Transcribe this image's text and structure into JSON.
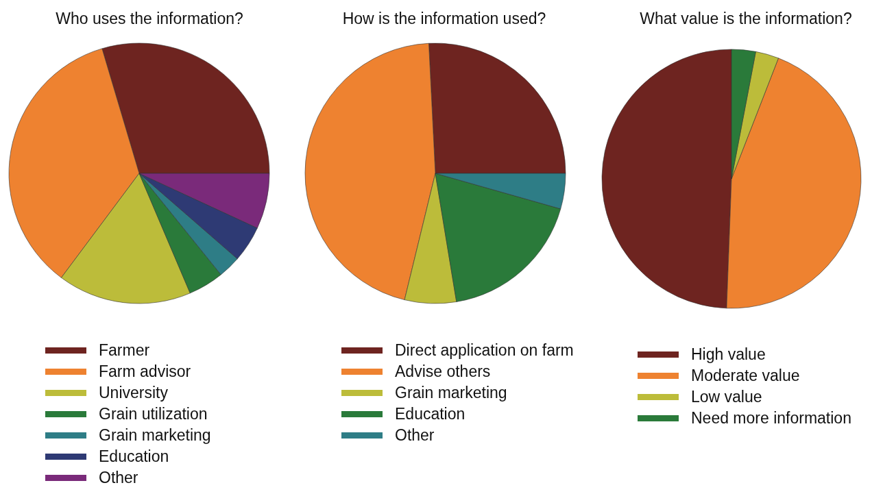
{
  "chart_data": [
    {
      "type": "pie",
      "title": "Who uses the information?",
      "categories": [
        "Farmer",
        "Farm advisor",
        "University",
        "Grain utilization",
        "Grain marketing",
        "Education",
        "Other"
      ],
      "values": [
        29.6,
        35.2,
        16.6,
        4.4,
        2.8,
        4.5,
        6.9
      ],
      "colors": [
        "#6e2420",
        "#ee8230",
        "#bcbc3a",
        "#2a7a3a",
        "#2e7d86",
        "#2e3a74",
        "#7a2a7a"
      ],
      "legend": "bottom"
    },
    {
      "type": "pie",
      "title": "How is the information used?",
      "categories": [
        "Direct application on farm",
        "Advise others",
        "Grain marketing",
        "Education",
        "Other"
      ],
      "values": [
        25.8,
        45.4,
        6.4,
        18.0,
        4.4
      ],
      "colors": [
        "#6e2420",
        "#ee8230",
        "#bcbc3a",
        "#2a7a3a",
        "#2e7d86"
      ],
      "legend": "bottom"
    },
    {
      "type": "pie",
      "title": "What value is the information?",
      "categories": [
        "High value",
        "Moderate value",
        "Low value",
        "Need more information"
      ],
      "values": [
        49.4,
        44.7,
        2.9,
        3.0
      ],
      "colors": [
        "#6e2420",
        "#ee8230",
        "#bcbc3a",
        "#2a7a3a"
      ],
      "legend": "bottom"
    }
  ]
}
